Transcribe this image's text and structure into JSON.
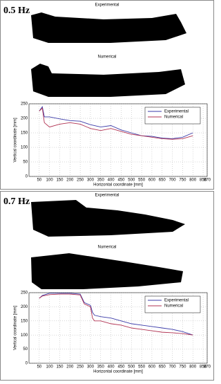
{
  "chart_data": [
    {
      "type": "line",
      "panel_label": "0.5 Hz",
      "image_labels": [
        "Experimental",
        "Numerical"
      ],
      "x_label": "Horizontal coordinate [mm]",
      "y_label": "Vertical coordinate [mm]",
      "x": [
        50,
        65,
        75,
        100,
        150,
        200,
        250,
        300,
        350,
        400,
        450,
        500,
        550,
        600,
        650,
        700,
        750,
        800
      ],
      "series": [
        {
          "name": "Experimental",
          "color": "#3a3aa8",
          "values": [
            225,
            240,
            205,
            205,
            198,
            192,
            190,
            178,
            170,
            175,
            160,
            150,
            140,
            138,
            132,
            130,
            135,
            150
          ]
        },
        {
          "name": "Numerical",
          "color": "#b03050",
          "values": [
            225,
            235,
            185,
            170,
            180,
            185,
            180,
            165,
            158,
            165,
            155,
            145,
            140,
            135,
            130,
            128,
            130,
            140
          ]
        }
      ],
      "xlim": [
        0,
        870
      ],
      "xticks": [
        50,
        100,
        150,
        200,
        250,
        300,
        350,
        400,
        450,
        500,
        550,
        600,
        650,
        700,
        750,
        800,
        850,
        870
      ],
      "ylim": [
        0,
        250
      ],
      "yticks": [
        0,
        50,
        100,
        150,
        200,
        250
      ],
      "grid": true,
      "legend": "upper right"
    },
    {
      "type": "line",
      "panel_label": "0.7 Hz",
      "image_labels": [
        "Experimental",
        "Numerical"
      ],
      "x_label": "Horizontal coordinate [mm]",
      "y_label": "Vertical coordinate [mm]",
      "x": [
        50,
        65,
        100,
        150,
        200,
        250,
        270,
        300,
        310,
        320,
        350,
        400,
        450,
        500,
        550,
        600,
        650,
        700,
        750,
        800
      ],
      "series": [
        {
          "name": "Experimental",
          "color": "#3a3aa8",
          "values": [
            230,
            240,
            248,
            248,
            248,
            245,
            215,
            205,
            180,
            170,
            165,
            160,
            150,
            140,
            135,
            130,
            125,
            120,
            112,
            100
          ]
        },
        {
          "name": "Numerical",
          "color": "#b03050",
          "values": [
            230,
            238,
            243,
            245,
            245,
            242,
            210,
            200,
            160,
            150,
            150,
            140,
            135,
            125,
            120,
            115,
            110,
            108,
            105,
            100
          ]
        }
      ],
      "xlim": [
        0,
        870
      ],
      "xticks": [
        50,
        100,
        150,
        200,
        250,
        300,
        350,
        400,
        450,
        500,
        550,
        600,
        650,
        700,
        750,
        800,
        850,
        870
      ],
      "ylim": [
        0,
        250
      ],
      "yticks": [
        0,
        50,
        100,
        150,
        200,
        250
      ],
      "grid": true,
      "legend": "upper right"
    }
  ]
}
